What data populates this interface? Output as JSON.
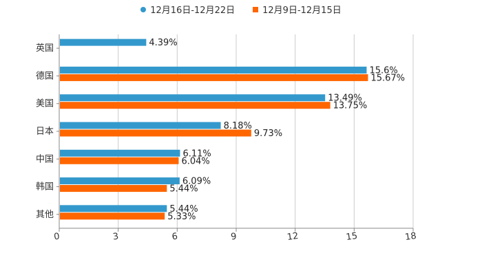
{
  "chart_data": {
    "type": "bar",
    "orientation": "horizontal",
    "title": "",
    "xlabel": "",
    "ylabel": "",
    "xlim": [
      0,
      18
    ],
    "x_ticks": [
      0,
      3,
      6,
      9,
      12,
      15,
      18
    ],
    "grid": "vertical",
    "legend_position": "top-center",
    "categories": [
      "英国",
      "德国",
      "美国",
      "日本",
      "中国",
      "韩国",
      "其他"
    ],
    "series": [
      {
        "name": "12月16日-12月22日",
        "color": "#3399cc",
        "marker": "circle",
        "values": [
          4.39,
          15.6,
          13.49,
          8.18,
          6.11,
          6.09,
          5.44
        ],
        "labels": [
          "4.39%",
          "15.6%",
          "13.49%",
          "8.18%",
          "6.11%",
          "6.09%",
          "5.44%"
        ]
      },
      {
        "name": "12月9日-12月15日",
        "color": "#ff6600",
        "marker": "square",
        "values": [
          null,
          15.67,
          13.75,
          9.73,
          6.04,
          5.44,
          5.33
        ],
        "labels": [
          "",
          "15.67%",
          "13.75%",
          "9.73%",
          "6.04%",
          "5.44%",
          "5.33%"
        ]
      }
    ]
  }
}
